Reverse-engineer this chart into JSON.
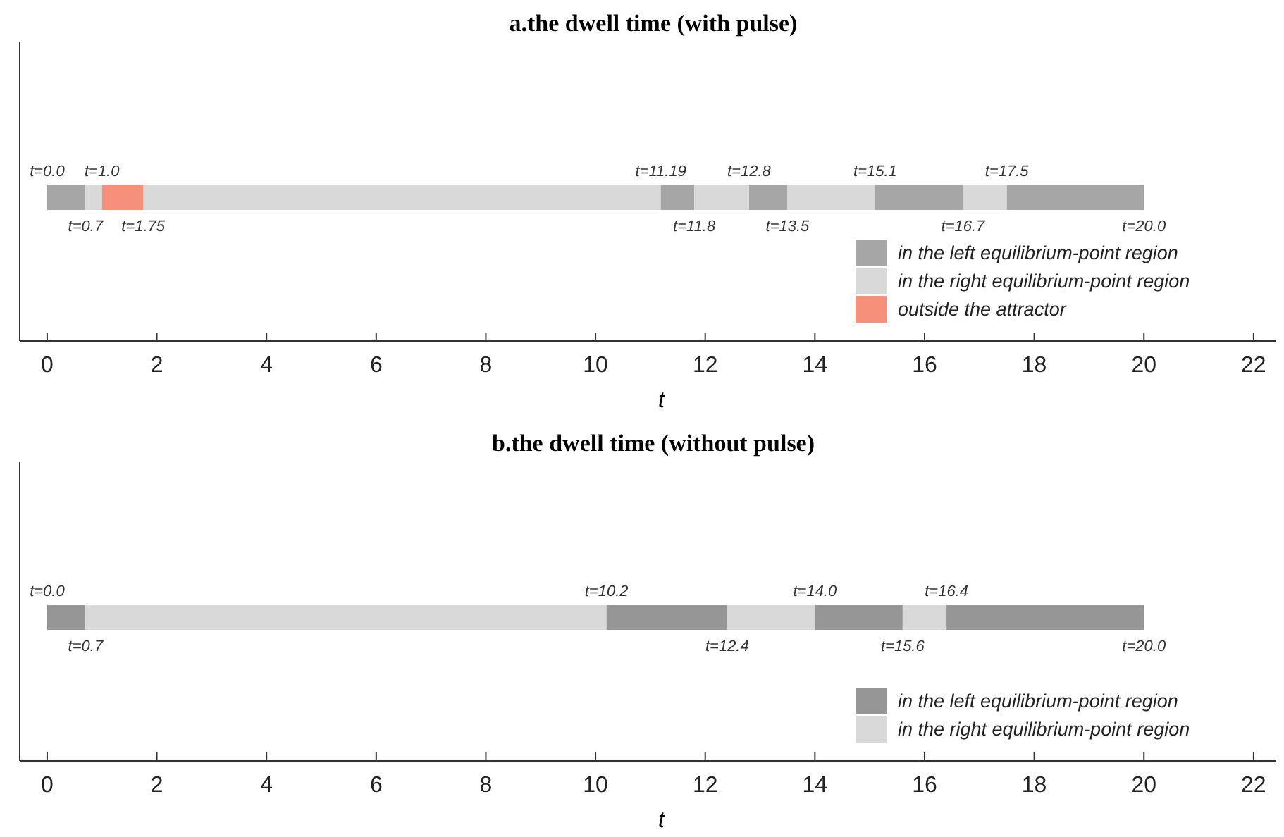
{
  "chart_data": [
    {
      "type": "bar",
      "title": "a.the dwell time (with pulse)",
      "xlabel": "t",
      "orientation": "horizontal",
      "stacked": true,
      "categories": [
        null
      ],
      "series": [
        {
          "name": "in the left equilibrium-point region",
          "color": "#a6a6a6",
          "values": [
            0.7
          ]
        },
        {
          "name": "in the right equilibrium-point region",
          "color": "#d9d9d9",
          "values": [
            0.3
          ]
        },
        {
          "name": "outside the attractor",
          "color": "#f7907a",
          "values": [
            0.75
          ]
        },
        {
          "color": "#d9d9d9",
          "values": [
            9.44
          ]
        },
        {
          "color": "#a6a6a6",
          "values": [
            0.61
          ]
        },
        {
          "color": "#d9d9d9",
          "values": [
            1.0
          ]
        },
        {
          "color": "#a6a6a6",
          "values": [
            0.7
          ]
        },
        {
          "color": "#d9d9d9",
          "values": [
            1.6
          ]
        },
        {
          "color": "#a6a6a6",
          "values": [
            1.6
          ]
        },
        {
          "color": "#d9d9d9",
          "values": [
            0.8
          ]
        },
        {
          "color": "#a6a6a6",
          "values": [
            2.5
          ]
        }
      ],
      "annotations": [
        "t=0.0",
        "t=0.7",
        "t=1.0",
        "t=1.75",
        "t=11.19",
        "t=11.8",
        "t=12.8",
        "t=13.5",
        "t=15.1",
        "t=16.7",
        "t=17.5",
        "t=20.0"
      ],
      "xlim": [
        -0.5,
        22.4
      ],
      "xticks": [
        0,
        2,
        4,
        6,
        8,
        10,
        12,
        14,
        16,
        18,
        20,
        22
      ],
      "tick_labels": "x",
      "legend": "bottom right"
    },
    {
      "type": "bar",
      "title": "b.the dwell time (without pulse)",
      "xlabel": "t",
      "orientation": "horizontal",
      "stacked": true,
      "categories": [
        null
      ],
      "series": [
        {
          "name": "in the left equilibrium-point region",
          "color": "#969696",
          "values": [
            0.7
          ]
        },
        {
          "name": "in the right equilibrium-point region",
          "color": "#d9d9d9",
          "values": [
            9.5
          ]
        },
        {
          "color": "#969696",
          "values": [
            2.2
          ]
        },
        {
          "color": "#d9d9d9",
          "values": [
            1.6
          ]
        },
        {
          "color": "#969696",
          "values": [
            1.6
          ]
        },
        {
          "color": "#d9d9d9",
          "values": [
            0.8
          ]
        },
        {
          "color": "#969696",
          "values": [
            3.6
          ]
        }
      ],
      "annotations": [
        "t=0.0",
        "t=0.7",
        "t=10.2",
        "t=12.4",
        "t=14.0",
        "t=15.6",
        "t=16.4",
        "t=20.0"
      ],
      "xlim": [
        -0.5,
        22.4
      ],
      "xticks": [
        0,
        2,
        4,
        6,
        8,
        10,
        12,
        14,
        16,
        18,
        20,
        22
      ],
      "tick_labels": "x",
      "legend": "bottom right"
    }
  ]
}
